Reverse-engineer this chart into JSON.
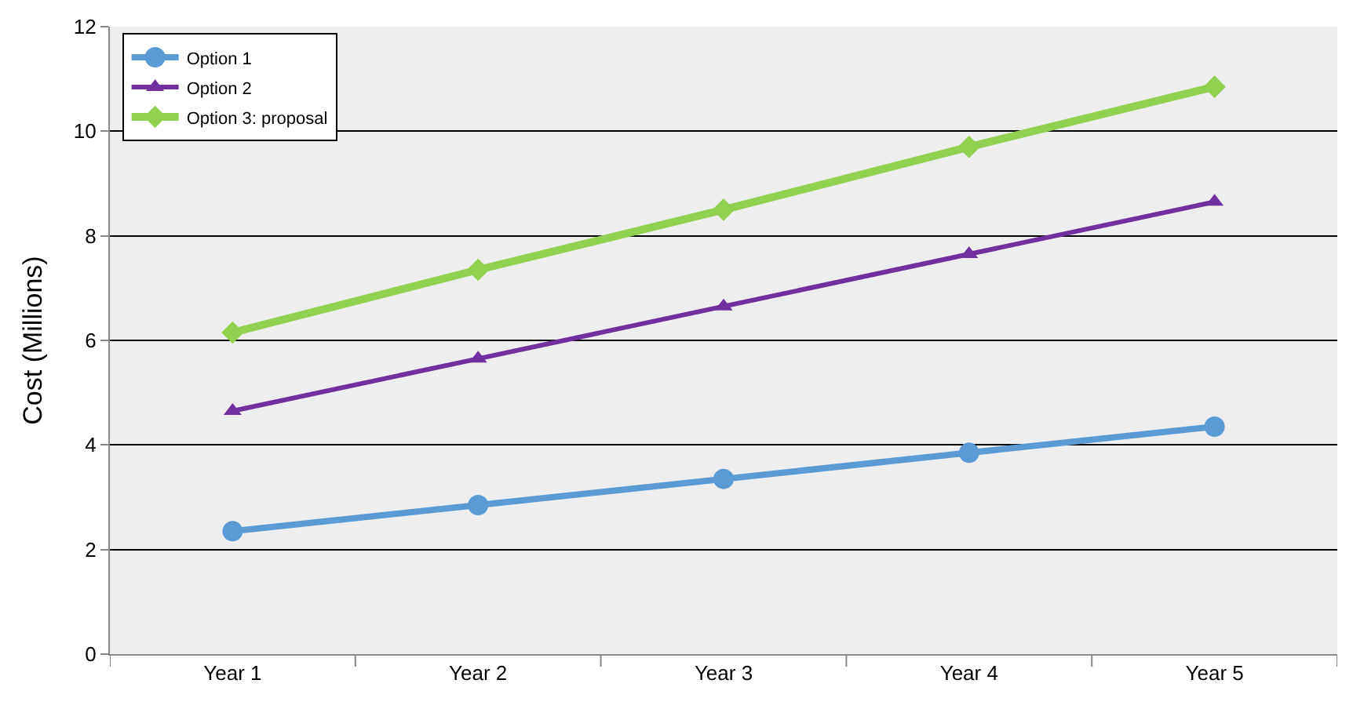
{
  "chart_data": {
    "type": "line",
    "ylabel": "Cost (Millions)",
    "categories": [
      "Year 1",
      "Year 2",
      "Year 3",
      "Year 4",
      "Year 5"
    ],
    "series": [
      {
        "name": "Option 1",
        "color": "#5b9bd5",
        "marker": "circle",
        "values": [
          2.35,
          2.85,
          3.35,
          3.85,
          4.35
        ]
      },
      {
        "name": "Option 2",
        "color": "#7030a0",
        "marker": "triangle",
        "values": [
          4.65,
          5.65,
          6.65,
          7.65,
          8.65
        ]
      },
      {
        "name": "Option 3: proposal",
        "color": "#92d050",
        "marker": "diamond",
        "values": [
          6.15,
          7.35,
          8.5,
          9.7,
          10.85
        ]
      }
    ],
    "ylim": [
      0,
      12
    ],
    "yticks": [
      0,
      2,
      4,
      6,
      8,
      10,
      12
    ],
    "grid": "y",
    "legend": "top left"
  }
}
